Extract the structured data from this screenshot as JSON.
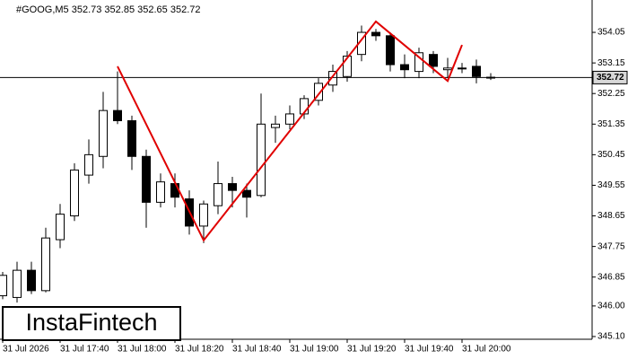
{
  "chart_data": {
    "type": "candlestick",
    "title": "#GOOG,M5  352.73 352.85 352.65 352.72",
    "watermark": "InstaFintech",
    "categories": [
      "31 Jul 2026",
      null,
      null,
      null,
      "31 Jul 17:40",
      null,
      null,
      null,
      "31 Jul 18:00",
      null,
      null,
      null,
      "31 Jul 18:20",
      null,
      null,
      null,
      "31 Jul 18:40",
      null,
      null,
      null,
      "31 Jul 19:00",
      null,
      null,
      null,
      "31 Jul 19:20",
      null,
      null,
      null,
      "31 Jul 19:40",
      null,
      null,
      null,
      "31 Jul 20:00",
      null,
      null
    ],
    "open": [
      346.3,
      346.25,
      347.05,
      346.45,
      347.95,
      348.65,
      349.85,
      350.4,
      351.75,
      351.45,
      350.4,
      349.05,
      349.6,
      349.15,
      348.35,
      348.95,
      349.6,
      349.4,
      349.25,
      351.25,
      351.35,
      351.65,
      352.05,
      352.5,
      352.75,
      353.4,
      354.05,
      353.95,
      353.1,
      352.9,
      353.4,
      352.95,
      353.0,
      353.05,
      352.73
    ],
    "high": [
      347.0,
      347.3,
      347.3,
      348.3,
      349.0,
      350.2,
      350.9,
      352.3,
      352.9,
      351.6,
      350.6,
      349.9,
      349.9,
      349.4,
      349.1,
      350.25,
      349.8,
      349.6,
      352.25,
      351.6,
      351.9,
      352.2,
      352.7,
      353.1,
      353.5,
      354.25,
      354.15,
      354.05,
      353.4,
      353.6,
      353.5,
      353.3,
      353.15,
      353.25,
      352.85
    ],
    "low": [
      346.2,
      346.1,
      346.35,
      346.4,
      347.7,
      348.5,
      349.6,
      350.05,
      351.35,
      350.0,
      348.3,
      348.9,
      348.9,
      348.1,
      347.85,
      348.7,
      348.9,
      348.6,
      349.2,
      350.8,
      351.2,
      351.5,
      351.9,
      352.3,
      352.6,
      353.2,
      353.8,
      352.9,
      352.7,
      352.7,
      352.85,
      352.7,
      352.85,
      352.55,
      352.65
    ],
    "close": [
      346.9,
      347.05,
      346.45,
      348.0,
      348.7,
      350.0,
      350.45,
      351.75,
      351.45,
      350.4,
      349.05,
      349.65,
      349.2,
      348.35,
      349.0,
      349.6,
      349.4,
      349.2,
      351.35,
      351.35,
      351.65,
      352.1,
      352.55,
      352.9,
      353.35,
      354.05,
      353.95,
      353.1,
      352.95,
      353.45,
      353.05,
      353.0,
      353.0,
      352.75,
      352.72
    ],
    "up_color": "#ffffff",
    "down_color": "#000000",
    "current_price": 352.72,
    "pattern_line": {
      "color": "#e00000",
      "x": [
        8,
        14,
        26,
        31,
        32
      ],
      "values": [
        353.05,
        347.93,
        354.37,
        352.62,
        353.68
      ]
    },
    "ylim": [
      345.02,
      354.87
    ],
    "yticks": [
      354.05,
      353.15,
      352.25,
      351.35,
      350.45,
      349.55,
      348.65,
      347.75,
      346.85,
      {
        "value": 346,
        "label": "346.00"
      },
      {
        "value": 345.1,
        "label": "345.10"
      }
    ],
    "grid": false
  }
}
